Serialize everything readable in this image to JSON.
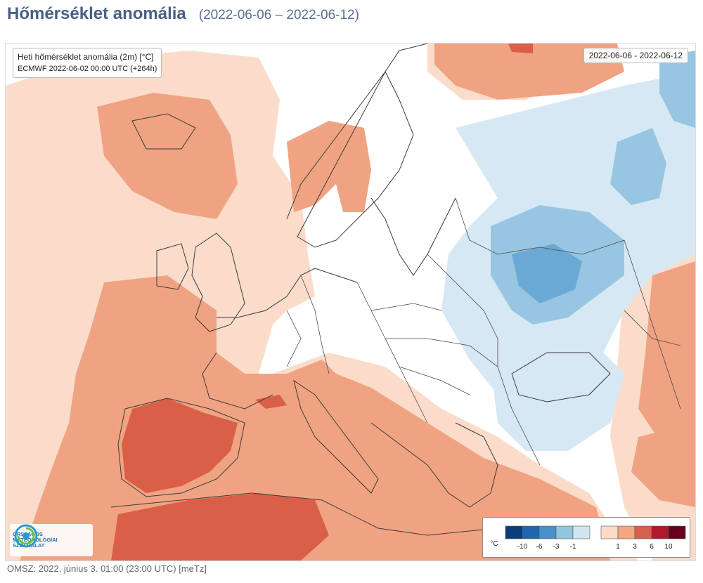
{
  "header": {
    "title": "Hőmérséklet anomália",
    "period": "(2022-06-06 – 2022-06-12)"
  },
  "map": {
    "info": {
      "line1": "Heti hőmérséklet anomália (2m) [°C]",
      "line2": "ECMWF 2022-06-02 00:00 UTC (+264h)"
    },
    "date_range": "2022-06-06 - 2022-06-12"
  },
  "logo": {
    "line1": "ORSZÁGOS",
    "line2": "METEOROLÓGIAI",
    "line3": "SZOLGÁLAT"
  },
  "legend": {
    "unit": "°C",
    "cold_labels": [
      "-10",
      "-6",
      "-3",
      "-1"
    ],
    "warm_labels": [
      "1",
      "3",
      "6",
      "10"
    ],
    "cold_colors": [
      "#0b3d7a",
      "#2166ac",
      "#4a90c9",
      "#92c5de",
      "#d1e5f0"
    ],
    "warm_colors": [
      "#fddbc7",
      "#f4a582",
      "#d6604d",
      "#b2182b",
      "#67001f"
    ]
  },
  "footer": {
    "text": "OMSZ: 2022. június 3. 01:00 (23:00  UTC)  [meTz]"
  }
}
